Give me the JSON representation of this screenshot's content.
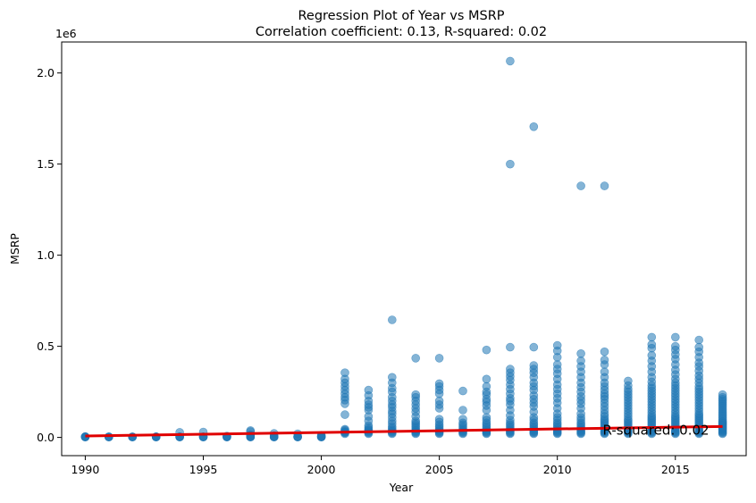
{
  "chart_data": {
    "type": "scatter",
    "title": "Regression Plot of Year vs MSRP",
    "subtitle": "Correlation coefficient: 0.13, R-squared: 0.02",
    "xlabel": "Year",
    "ylabel": "MSRP",
    "offset_label": "1e6",
    "xlim": [
      1989,
      2018
    ],
    "ylim": [
      -100000,
      2170000
    ],
    "x_ticks": [
      1990,
      1995,
      2000,
      2005,
      2010,
      2015
    ],
    "x_tick_labels": [
      "1990",
      "1995",
      "2000",
      "2005",
      "2010",
      "2015"
    ],
    "y_ticks": [
      0,
      500000,
      1000000,
      1500000,
      2000000
    ],
    "y_tick_labels": [
      "0.0",
      "0.5",
      "1.0",
      "1.5",
      "2.0"
    ],
    "grid": false,
    "point_color": "#1f77b4",
    "point_alpha": 0.55,
    "line_color": "#e00000",
    "annotation": {
      "text": "R-squared: 0.02",
      "x": 2012,
      "y": 40000
    },
    "regression_line": {
      "x": [
        1990,
        2017
      ],
      "y": [
        8000,
        60000
      ]
    },
    "points_by_year": [
      {
        "year": 1990,
        "msrp": [
          2000,
          2500,
          3000,
          3500,
          5000
        ]
      },
      {
        "year": 1991,
        "msrp": [
          2000,
          2500,
          3000,
          4000
        ]
      },
      {
        "year": 1992,
        "msrp": [
          2000,
          2500,
          3000,
          3500
        ]
      },
      {
        "year": 1993,
        "msrp": [
          2000,
          2500,
          3000,
          3500,
          4000
        ]
      },
      {
        "year": 1994,
        "msrp": [
          2000,
          2500,
          3000,
          4000,
          28000
        ]
      },
      {
        "year": 1995,
        "msrp": [
          2000,
          2500,
          3000,
          4000,
          30000
        ]
      },
      {
        "year": 1996,
        "msrp": [
          2000,
          2500,
          3000,
          4000,
          8000
        ]
      },
      {
        "year": 1997,
        "msrp": [
          2000,
          2500,
          3000,
          5000,
          10000,
          15000,
          32000,
          38000
        ]
      },
      {
        "year": 1998,
        "msrp": [
          2000,
          2500,
          3000,
          4000,
          10000,
          22000
        ]
      },
      {
        "year": 1999,
        "msrp": [
          2000,
          2500,
          3000,
          4000,
          20000
        ]
      },
      {
        "year": 2000,
        "msrp": [
          2000,
          2500,
          3000,
          4000,
          8000,
          12000
        ]
      },
      {
        "year": 2001,
        "msrp": [
          20000,
          25000,
          28000,
          30000,
          35000,
          40000,
          45000,
          125000,
          185000,
          205000,
          220000,
          240000,
          260000,
          280000,
          300000,
          320000,
          355000
        ]
      },
      {
        "year": 2002,
        "msrp": [
          20000,
          25000,
          30000,
          35000,
          40000,
          45000,
          55000,
          65000,
          90000,
          115000,
          150000,
          165000,
          180000,
          200000,
          230000,
          260000
        ]
      },
      {
        "year": 2003,
        "msrp": [
          20000,
          25000,
          30000,
          35000,
          40000,
          50000,
          60000,
          75000,
          90000,
          110000,
          130000,
          145000,
          165000,
          180000,
          200000,
          220000,
          250000,
          270000,
          300000,
          330000,
          645000
        ]
      },
      {
        "year": 2004,
        "msrp": [
          20000,
          25000,
          30000,
          35000,
          40000,
          50000,
          60000,
          70000,
          80000,
          90000,
          115000,
          140000,
          160000,
          180000,
          200000,
          220000,
          235000,
          435000
        ]
      },
      {
        "year": 2005,
        "msrp": [
          20000,
          25000,
          30000,
          35000,
          40000,
          50000,
          60000,
          70000,
          85000,
          100000,
          160000,
          180000,
          200000,
          240000,
          260000,
          280000,
          295000,
          435000
        ]
      },
      {
        "year": 2006,
        "msrp": [
          20000,
          25000,
          30000,
          35000,
          40000,
          50000,
          60000,
          70000,
          80000,
          100000,
          150000,
          255000
        ]
      },
      {
        "year": 2007,
        "msrp": [
          20000,
          25000,
          30000,
          35000,
          40000,
          50000,
          60000,
          70000,
          80000,
          95000,
          110000,
          150000,
          175000,
          195000,
          210000,
          235000,
          250000,
          280000,
          320000,
          480000
        ]
      },
      {
        "year": 2008,
        "msrp": [
          20000,
          25000,
          30000,
          35000,
          40000,
          50000,
          60000,
          70000,
          80000,
          95000,
          120000,
          150000,
          180000,
          200000,
          215000,
          240000,
          265000,
          290000,
          315000,
          335000,
          355000,
          375000,
          495000,
          1500000,
          2065000
        ]
      },
      {
        "year": 2009,
        "msrp": [
          20000,
          25000,
          30000,
          35000,
          40000,
          50000,
          60000,
          70000,
          80000,
          95000,
          110000,
          140000,
          170000,
          190000,
          210000,
          230000,
          260000,
          280000,
          300000,
          330000,
          355000,
          375000,
          395000,
          495000,
          1705000
        ]
      },
      {
        "year": 2010,
        "msrp": [
          20000,
          25000,
          30000,
          35000,
          40000,
          50000,
          60000,
          70000,
          80000,
          95000,
          110000,
          130000,
          160000,
          190000,
          215000,
          240000,
          265000,
          290000,
          320000,
          350000,
          375000,
          400000,
          440000,
          475000,
          505000
        ]
      },
      {
        "year": 2011,
        "msrp": [
          20000,
          25000,
          30000,
          35000,
          40000,
          50000,
          60000,
          70000,
          80000,
          95000,
          110000,
          130000,
          160000,
          185000,
          205000,
          225000,
          250000,
          275000,
          300000,
          330000,
          360000,
          390000,
          420000,
          460000,
          1380000
        ]
      },
      {
        "year": 2012,
        "msrp": [
          20000,
          25000,
          30000,
          35000,
          40000,
          50000,
          60000,
          70000,
          80000,
          90000,
          100000,
          115000,
          130000,
          150000,
          170000,
          190000,
          210000,
          225000,
          240000,
          260000,
          280000,
          300000,
          330000,
          360000,
          400000,
          425000,
          470000,
          1380000
        ]
      },
      {
        "year": 2013,
        "msrp": [
          20000,
          25000,
          30000,
          35000,
          40000,
          50000,
          60000,
          70000,
          80000,
          90000,
          100000,
          115000,
          130000,
          145000,
          160000,
          175000,
          190000,
          205000,
          220000,
          235000,
          250000,
          265000,
          285000,
          310000
        ]
      },
      {
        "year": 2014,
        "msrp": [
          20000,
          25000,
          30000,
          35000,
          40000,
          50000,
          60000,
          70000,
          80000,
          90000,
          100000,
          110000,
          120000,
          135000,
          150000,
          165000,
          180000,
          195000,
          210000,
          225000,
          240000,
          255000,
          270000,
          285000,
          305000,
          330000,
          360000,
          390000,
          420000,
          450000,
          490000,
          510000,
          550000
        ]
      },
      {
        "year": 2015,
        "msrp": [
          20000,
          25000,
          30000,
          35000,
          40000,
          50000,
          60000,
          70000,
          80000,
          90000,
          100000,
          110000,
          120000,
          135000,
          150000,
          165000,
          180000,
          195000,
          210000,
          225000,
          240000,
          255000,
          270000,
          285000,
          300000,
          320000,
          345000,
          370000,
          400000,
          430000,
          455000,
          480000,
          500000,
          550000
        ]
      },
      {
        "year": 2016,
        "msrp": [
          20000,
          25000,
          30000,
          35000,
          40000,
          50000,
          60000,
          70000,
          80000,
          90000,
          100000,
          110000,
          120000,
          130000,
          145000,
          160000,
          175000,
          190000,
          205000,
          220000,
          235000,
          250000,
          265000,
          280000,
          300000,
          320000,
          340000,
          365000,
          390000,
          410000,
          440000,
          470000,
          495000,
          535000
        ]
      },
      {
        "year": 2017,
        "msrp": [
          20000,
          25000,
          30000,
          35000,
          40000,
          45000,
          50000,
          55000,
          60000,
          65000,
          70000,
          75000,
          80000,
          85000,
          90000,
          100000,
          110000,
          120000,
          130000,
          140000,
          150000,
          160000,
          170000,
          180000,
          190000,
          200000,
          210000,
          220000,
          235000
        ]
      }
    ]
  }
}
